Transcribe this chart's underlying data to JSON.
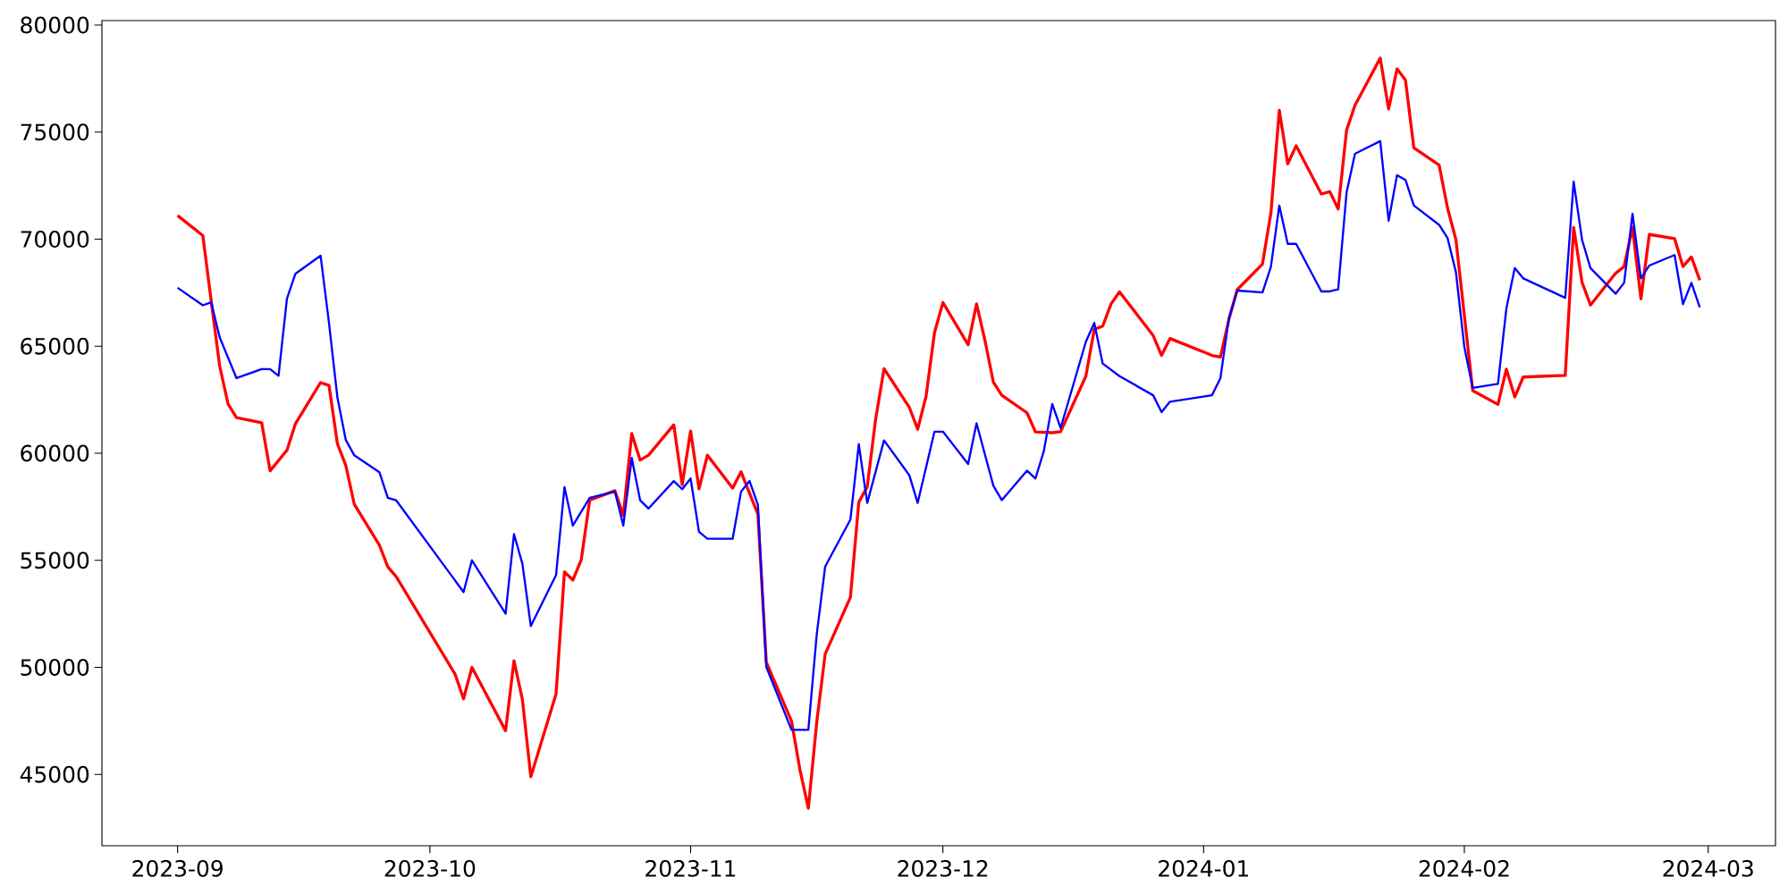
{
  "chart_data": {
    "type": "line",
    "xlim": [
      "2023-08-23",
      "2024-03-09"
    ],
    "ylim": [
      41670,
      80210
    ],
    "xticks": [
      "2023-09",
      "2023-10",
      "2023-11",
      "2023-12",
      "2024-01",
      "2024-02",
      "2024-03"
    ],
    "yticks": [
      45000,
      50000,
      55000,
      60000,
      65000,
      70000,
      75000,
      80000
    ],
    "series": [
      {
        "color": "#ff0000",
        "x": [
          "2023-09-01",
          "2023-09-04",
          "2023-09-05",
          "2023-09-06",
          "2023-09-07",
          "2023-09-08",
          "2023-09-11",
          "2023-09-12",
          "2023-09-14",
          "2023-09-15",
          "2023-09-18",
          "2023-09-19",
          "2023-09-20",
          "2023-09-21",
          "2023-09-22",
          "2023-09-25",
          "2023-09-26",
          "2023-09-27",
          "2023-10-04",
          "2023-10-05",
          "2023-10-06",
          "2023-10-10",
          "2023-10-11",
          "2023-10-12",
          "2023-10-13",
          "2023-10-16",
          "2023-10-17",
          "2023-10-18",
          "2023-10-19",
          "2023-10-20",
          "2023-10-23",
          "2023-10-24",
          "2023-10-25",
          "2023-10-26",
          "2023-10-27",
          "2023-10-30",
          "2023-10-31",
          "2023-11-01",
          "2023-11-02",
          "2023-11-03",
          "2023-11-06",
          "2023-11-07",
          "2023-11-09",
          "2023-11-10",
          "2023-11-13",
          "2023-11-14",
          "2023-11-15",
          "2023-11-16",
          "2023-11-17",
          "2023-11-20",
          "2023-11-21",
          "2023-11-22",
          "2023-11-23",
          "2023-11-24",
          "2023-11-27",
          "2023-11-28",
          "2023-11-29",
          "2023-11-30",
          "2023-12-01",
          "2023-12-04",
          "2023-12-05",
          "2023-12-06",
          "2023-12-07",
          "2023-12-08",
          "2023-12-11",
          "2023-12-12",
          "2023-12-14",
          "2023-12-15",
          "2023-12-18",
          "2023-12-19",
          "2023-12-20",
          "2023-12-21",
          "2023-12-22",
          "2023-12-26",
          "2023-12-27",
          "2023-12-28",
          "2024-01-02",
          "2024-01-03",
          "2024-01-04",
          "2024-01-05",
          "2024-01-08",
          "2024-01-09",
          "2024-01-10",
          "2024-01-11",
          "2024-01-12",
          "2024-01-15",
          "2024-01-16",
          "2024-01-17",
          "2024-01-18",
          "2024-01-19",
          "2024-01-22",
          "2024-01-23",
          "2024-01-24",
          "2024-01-25",
          "2024-01-26",
          "2024-01-29",
          "2024-01-30",
          "2024-01-31",
          "2024-02-02",
          "2024-02-05",
          "2024-02-06",
          "2024-02-07",
          "2024-02-08",
          "2024-02-13",
          "2024-02-14",
          "2024-02-15",
          "2024-02-16",
          "2024-02-19",
          "2024-02-20",
          "2024-02-21",
          "2024-02-22",
          "2024-02-23",
          "2024-02-26",
          "2024-02-27",
          "2024-02-28",
          "2024-02-29"
        ],
        "values": [
          71100,
          70170,
          67100,
          64080,
          62300,
          61670,
          61420,
          59180,
          60140,
          61370,
          63300,
          63170,
          60450,
          59430,
          57630,
          55700,
          54690,
          54230,
          49680,
          48530,
          50000,
          47040,
          50310,
          48490,
          44890,
          48760,
          54460,
          54080,
          55030,
          57810,
          58250,
          57100,
          60920,
          59680,
          59910,
          61330,
          58530,
          61040,
          58340,
          59910,
          58370,
          59130,
          57160,
          50240,
          47490,
          45220,
          43420,
          47450,
          50620,
          53270,
          57720,
          58430,
          61590,
          63950,
          62150,
          61120,
          62670,
          65640,
          67040,
          65070,
          66980,
          65270,
          63320,
          62710,
          61890,
          61000,
          60960,
          61010,
          63600,
          65790,
          65940,
          66980,
          67540,
          65500,
          64570,
          65360,
          64570,
          64490,
          66240,
          67640,
          68840,
          71220,
          76020,
          73520,
          74360,
          72110,
          72220,
          71410,
          75090,
          76250,
          78460,
          76080,
          77950,
          77430,
          74260,
          73460,
          71460,
          69980,
          62920,
          62280,
          63930,
          62630,
          63560,
          63640,
          70550,
          67980,
          66920,
          68410,
          68720,
          70550,
          67210,
          70220,
          70030,
          68720,
          69170,
          68080
        ]
      },
      {
        "color": "#0000ff",
        "x": [
          "2023-09-01",
          "2023-09-04",
          "2023-09-05",
          "2023-09-06",
          "2023-09-08",
          "2023-09-11",
          "2023-09-12",
          "2023-09-13",
          "2023-09-14",
          "2023-09-15",
          "2023-09-18",
          "2023-09-19",
          "2023-09-20",
          "2023-09-21",
          "2023-09-22",
          "2023-09-25",
          "2023-09-26",
          "2023-09-27",
          "2023-10-05",
          "2023-10-06",
          "2023-10-10",
          "2023-10-11",
          "2023-10-12",
          "2023-10-13",
          "2023-10-16",
          "2023-10-17",
          "2023-10-18",
          "2023-10-20",
          "2023-10-23",
          "2023-10-24",
          "2023-10-25",
          "2023-10-26",
          "2023-10-27",
          "2023-10-30",
          "2023-10-31",
          "2023-11-01",
          "2023-11-02",
          "2023-11-03",
          "2023-11-06",
          "2023-11-07",
          "2023-11-08",
          "2023-11-09",
          "2023-11-10",
          "2023-11-13",
          "2023-11-15",
          "2023-11-16",
          "2023-11-17",
          "2023-11-20",
          "2023-11-21",
          "2023-11-22",
          "2023-11-24",
          "2023-11-27",
          "2023-11-28",
          "2023-11-30",
          "2023-12-01",
          "2023-12-04",
          "2023-12-05",
          "2023-12-07",
          "2023-12-08",
          "2023-12-11",
          "2023-12-12",
          "2023-12-13",
          "2023-12-14",
          "2023-12-15",
          "2023-12-18",
          "2023-12-19",
          "2023-12-20",
          "2023-12-22",
          "2023-12-26",
          "2023-12-27",
          "2023-12-28",
          "2024-01-02",
          "2024-01-03",
          "2024-01-04",
          "2024-01-05",
          "2024-01-08",
          "2024-01-09",
          "2024-01-10",
          "2024-01-11",
          "2024-01-12",
          "2024-01-15",
          "2024-01-16",
          "2024-01-17",
          "2024-01-18",
          "2024-01-19",
          "2024-01-22",
          "2024-01-23",
          "2024-01-24",
          "2024-01-25",
          "2024-01-26",
          "2024-01-29",
          "2024-01-30",
          "2024-01-31",
          "2024-02-01",
          "2024-02-02",
          "2024-02-05",
          "2024-02-06",
          "2024-02-07",
          "2024-02-08",
          "2024-02-13",
          "2024-02-14",
          "2024-02-15",
          "2024-02-16",
          "2024-02-19",
          "2024-02-20",
          "2024-02-21",
          "2024-02-22",
          "2024-02-23",
          "2024-02-26",
          "2024-02-27",
          "2024-02-28",
          "2024-02-29"
        ],
        "values": [
          67730,
          66910,
          67050,
          65420,
          63510,
          63930,
          63930,
          63620,
          67220,
          68380,
          69230,
          66090,
          62610,
          60620,
          59910,
          59110,
          57920,
          57800,
          53520,
          55000,
          52510,
          56220,
          54840,
          51930,
          54310,
          58420,
          56620,
          57920,
          58210,
          56620,
          59780,
          57800,
          57420,
          58700,
          58320,
          58820,
          56330,
          56010,
          56010,
          58210,
          58710,
          57590,
          50020,
          47080,
          47080,
          51550,
          54710,
          56900,
          60420,
          57680,
          60600,
          58980,
          57680,
          61010,
          61010,
          59500,
          61400,
          58480,
          57810,
          59190,
          58820,
          60100,
          62300,
          61180,
          65210,
          66090,
          64190,
          63600,
          62710,
          61920,
          62410,
          62710,
          63510,
          66300,
          67600,
          67510,
          68710,
          71570,
          69780,
          69780,
          67560,
          67560,
          67660,
          72180,
          73990,
          74580,
          70860,
          72990,
          72770,
          71570,
          70670,
          70060,
          68460,
          64970,
          63050,
          63240,
          66760,
          68650,
          68170,
          67260,
          72690,
          69970,
          68650,
          67450,
          67960,
          71180,
          68170,
          68770,
          69260,
          66960,
          67960,
          66810
        ]
      }
    ]
  }
}
